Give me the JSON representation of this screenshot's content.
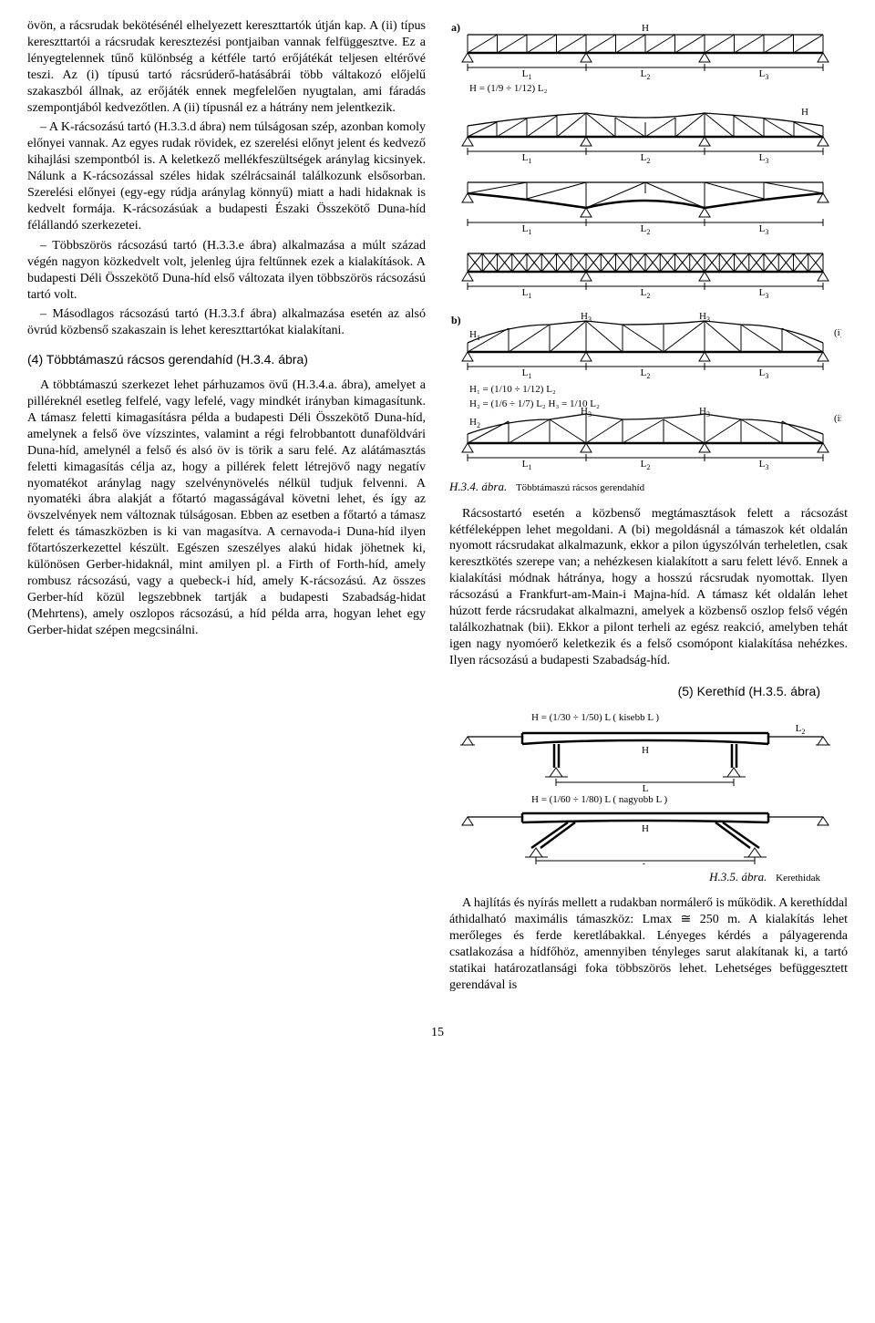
{
  "leftCol": {
    "p1": "övön, a rácsrudak bekötésénél elhelyezett kereszttartók útján kap. A (ii) típus kereszttartói a rácsrudak keresztezési pontjaiban vannak felfüggesztve. Ez a lényegtelennek tűnő különbség a kétféle tartó erőjátékát teljesen eltérővé teszi. Az (i) típusú tartó rácsrúderő-hatásábrái több váltakozó előjelű szakaszból állnak, az erőjáték ennek megfelelően nyugtalan, ami fáradás szempontjából kedvezőtlen. A (ii) típusnál ez a hátrány nem jelentkezik.",
    "p2": "– A K-rácsozású tartó (H.3.3.d ábra) nem túlságosan szép, azonban komoly előnyei vannak. Az egyes rudak rövidek, ez szerelési előnyt jelent és kedvező kihajlási szempontból is. A keletkező mellékfeszültségek aránylag kicsinyek. Nálunk a K-rácsozással széles hidak szélrácsainál találkozunk elsősorban. Szerelési előnyei (egy-egy rúdja aránylag könnyű) miatt a hadi hidaknak is kedvelt formája. K-rácsozásúak a budapesti Északi Összekötő Duna-híd félállandó szerkezetei.",
    "p3": "– Többszörös rácsozású tartó (H.3.3.e ábra) alkalmazása a múlt század végén nagyon közkedvelt volt, jelenleg újra feltűnnek ezek a kialakítások. A budapesti Déli Összekötő Duna-híd első változata ilyen többszörös rácsozású tartó volt.",
    "p4": "– Másodlagos rácsozású tartó (H.3.3.f ábra) alkalmazása esetén az alsó övrúd közbenső szakaszain is lehet kereszttartókat kialakítani.",
    "h4": "(4) Többtámaszú rácsos gerendahíd (H.3.4. ábra)",
    "p5": "A többtámaszú szerkezet lehet párhuzamos övű (H.3.4.a. ábra), amelyet a pilléreknél esetleg felfelé, vagy lefelé, vagy mindkét irányban kimagasítunk. A támasz feletti kimagasításra példa a budapesti Déli Összekötő Duna-híd, amelynek a felső öve vízszintes, valamint a régi felrobbantott dunaföldvári Duna-híd, amelynél a felső és alsó öv is törik a saru felé. Az alátámasztás feletti kimagasítás célja az, hogy a pillérek felett létrejövő nagy negatív nyomatékot aránylag nagy szelvénynövelés nélkül tudjuk felvenni. A nyomatéki ábra alakját a főtartó magasságával követni lehet, és így az övszelvények nem változnak túlságosan. Ebben az esetben a főtartó a támasz felett és támaszközben is ki van magasítva. A cernavoda-i Duna-híd ilyen főtartószerkezettel készült. Egészen szeszélyes alakú hidak jöhetnek ki, különösen Gerber-hidaknál, mint amilyen pl. a Firth of Forth-híd, amely rombusz rácsozású, vagy a quebeck-i híd, amely K-rácsozású. Az összes Gerber-híd közül legszebbnek tartják a budapesti Szabadság-hidat (Mehrtens), amely oszlopos rácsozású, a híd példa arra, hogyan lehet egy Gerber-hidat szépen megcsinálni."
  },
  "rightCol": {
    "fig34": {
      "label": "H.3.4. ábra.",
      "text": "Többtámaszú rácsos gerendahíd",
      "a_label": "a)",
      "b_label": "b)",
      "i_label": "(i)",
      "ii_label": "(ii)",
      "Hsym": "H",
      "Lsyms": [
        "L",
        "1",
        "2",
        "3"
      ],
      "formula_a": "H = (1/9 ÷ 1/12) L₂",
      "formulas_b": [
        "H₁ = (1/10 ÷ 1/12) L₂",
        "H₂ = (1/6 ÷ 1/7) L₂          H₃ = 1/10 L₂"
      ],
      "H_sub": [
        "H",
        "1",
        "2",
        "3"
      ],
      "n_panels": 4,
      "spans": 3,
      "truss_verticals_per_span": 8,
      "color": "#000000",
      "bg": "#ffffff",
      "line_thin": 1,
      "line_med": 1.3,
      "line_thick": 2.5,
      "font_formula_pt": 11
    },
    "p6": "Rácsostartó esetén a közbenső megtámasztások felett a rácsozást kétféleképpen lehet megoldani. A (bi) megoldásnál a támaszok két oldalán nyomott rácsrudakat alkalmazunk, ekkor a pilon úgyszólván terheletlen, csak keresztkötés szerepe van; a nehézkesen kialakított a saru felett lévő. Ennek a kialakítási módnak hátránya, hogy a hosszú rácsrudak nyomottak. Ilyen rácsozású a Frankfurt-am-Main-i Majna-híd. A támasz két oldalán lehet húzott ferde rácsrudakat alkalmazni, amelyek a közbenső oszlop felső végén találkozhatnak (bii). Ekkor a pilont terheli az egész reakció, amelyben tehát igen nagy nyomóerő keletkezik és a felső csomópont kialakítása nehézkes. Ilyen rácsozású a budapesti Szabadság-híd.",
    "h5": "(5) Kerethíd (H.3.5. ábra)",
    "fig35": {
      "label": "H.3.5. ábra.",
      "text": "Kerethidak",
      "formula_top": "H = (1/30 ÷ 1/50) L    ( kisebb  L )",
      "formula_bot": "H = (1/60 ÷ 1/80) L    ( nagyobb L )",
      "Hsym": "H",
      "Lsym": "L",
      "L2sym": "L₂",
      "rows": 2,
      "spans_main": 1,
      "side_spans": 2,
      "stroke": "#000000",
      "bg": "#ffffff",
      "line_thin": 1,
      "line_thick": 2.5,
      "font_formula_pt": 11
    },
    "p7": "A hajlítás és nyírás mellett a rudakban normálerő is működik. A kerethíddal áthidalható maximális támaszköz: Lmax ≅ 250 m. A kialakítás lehet merőleges és ferde keretlábakkal. Lényeges kérdés a pályagerenda csatlakozása a hídfőhöz, amennyiben tényleges sarut alakítanak ki, a tartó statikai határozatlansági foka többszörös lehet. Lehetséges befüggesztett gerendával is"
  },
  "pagenum": "15"
}
